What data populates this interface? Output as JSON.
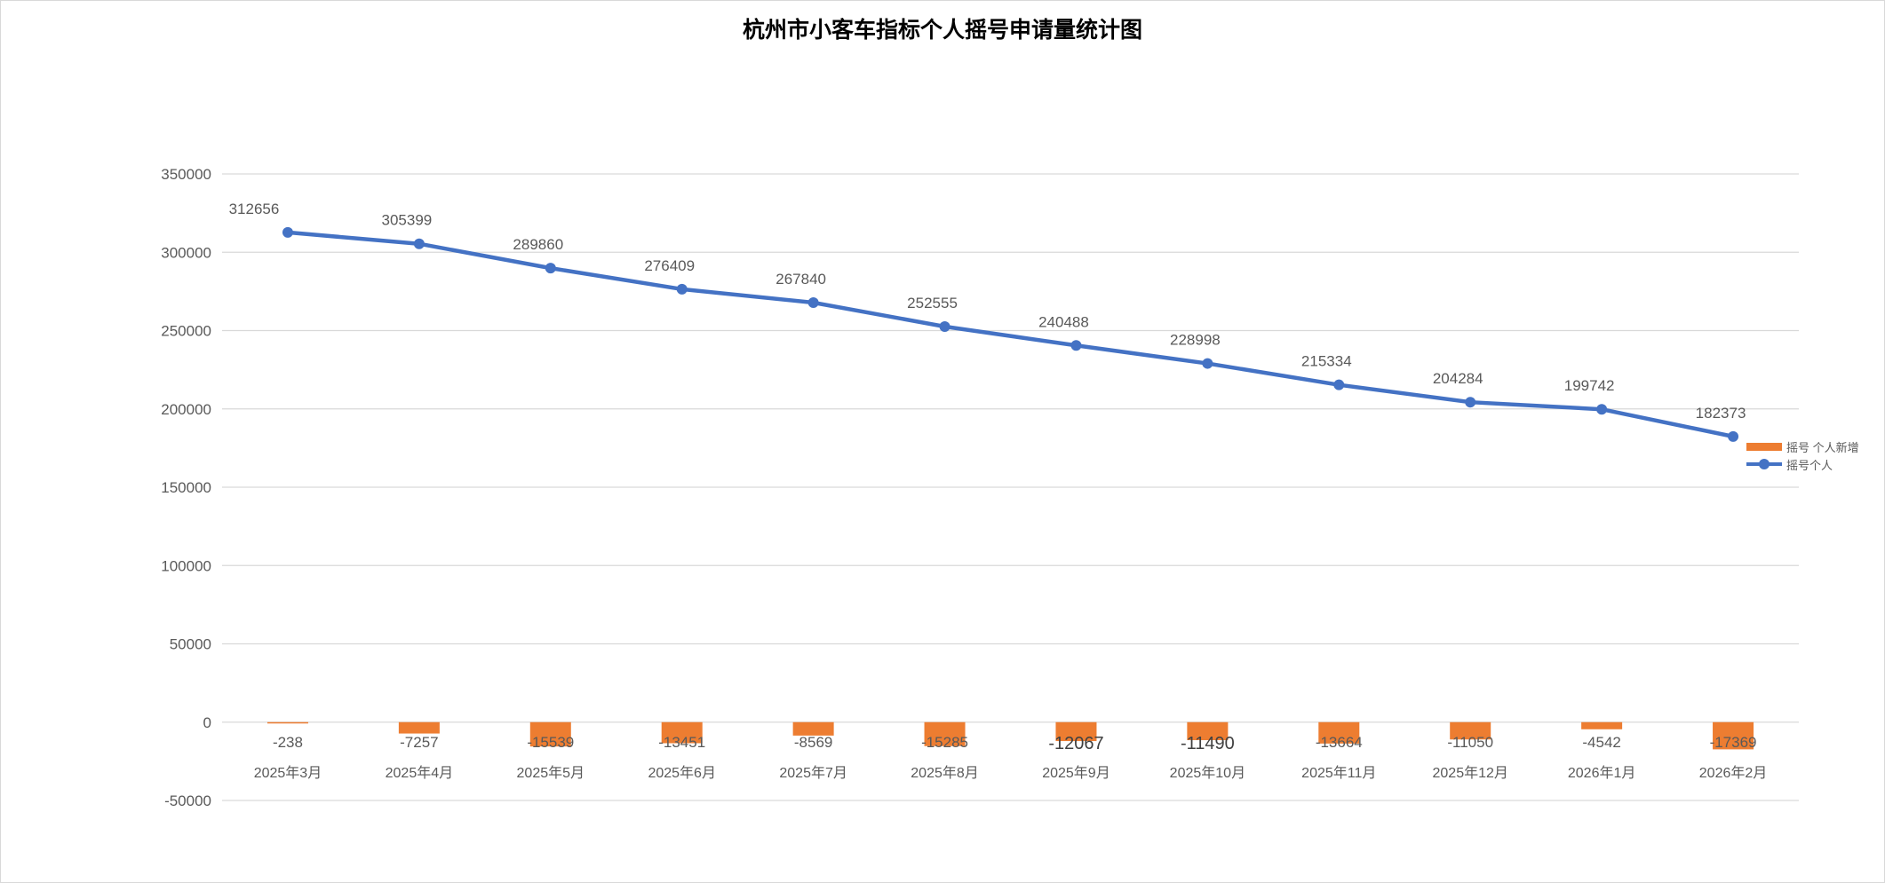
{
  "colors": {
    "line": "#4472C4",
    "bar": "#ED7D31",
    "grid": "#d9d9d9",
    "tick_text": "#595959"
  },
  "chart_data": {
    "type": "bar+line",
    "title": "杭州市小客车指标个人摇号申请量统计图",
    "categories": [
      "2025年3月",
      "2025年4月",
      "2025年5月",
      "2025年6月",
      "2025年7月",
      "2025年8月",
      "2025年9月",
      "2025年10月",
      "2025年11月",
      "2025年12月",
      "2026年1月",
      "2026年2月"
    ],
    "series": [
      {
        "name": "摇号 个人新增",
        "type": "bar",
        "values": [
          -238,
          -7257,
          -15539,
          -13451,
          -8569,
          -15285,
          -12067,
          -11490,
          -13664,
          -11050,
          -4542,
          -17369
        ]
      },
      {
        "name": "摇号个人",
        "type": "line",
        "values": [
          312656,
          305399,
          289860,
          276409,
          267840,
          252555,
          240488,
          228998,
          215334,
          204284,
          199742,
          182373
        ]
      }
    ],
    "ylim": [
      -50000,
      350000
    ],
    "yticks": [
      -50000,
      0,
      50000,
      100000,
      150000,
      200000,
      250000,
      300000,
      350000
    ],
    "grid": true,
    "legend_position": "right"
  }
}
